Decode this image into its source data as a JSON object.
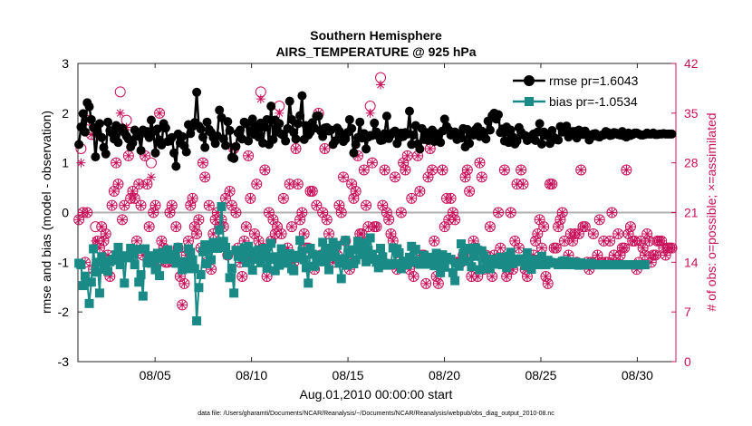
{
  "chart_data": {
    "type": "line",
    "title": "Southern Hemisphere",
    "subtitle": "AIRS_TEMPERATURE @ 925 hPa",
    "xlabel": "Aug.01,2010 00:00:00 start",
    "ylabel": "rmse and bias (model - observation)",
    "ylabel_right": "# of obs: o=possible; ×=assimilated",
    "footnote": "data file: /Users/gharamti/Documents/NCAR/Reanalysis/~/Documents/NCAR/Reanalysis/webpub/obs_diag_output_2010-08.nc",
    "x_range": [
      1,
      32
    ],
    "ylim": [
      -3,
      3
    ],
    "ylim_right": [
      0,
      42
    ],
    "x_ticks": [
      5,
      10,
      15,
      20,
      25,
      30
    ],
    "x_tick_labels": [
      "08/05",
      "08/10",
      "08/15",
      "08/20",
      "08/25",
      "08/30"
    ],
    "y_ticks": [
      -3,
      -2,
      -1,
      0,
      1,
      2,
      3
    ],
    "y_tick_labels": [
      "-3",
      "-2",
      "-1",
      "0",
      "1",
      "2",
      "3"
    ],
    "y_ticks_right": [
      0,
      7,
      14,
      21,
      28,
      35,
      42
    ],
    "y_tick_labels_right": [
      "0",
      "7",
      "14",
      "21",
      "28",
      "35",
      "42"
    ],
    "legend_position": "top-right",
    "colors": {
      "rmse": "#000000",
      "bias": "#1a8a86",
      "obs": "#c8105a",
      "zero_line": "#b0b0b0"
    },
    "series": [
      {
        "name": "rmse pr=1.6043",
        "marker": "circle",
        "values": [
          1.37,
          1.72,
          1.99,
          1.62,
          2.21,
          2.13,
          1.87,
          1.71,
          1.12,
          1.6,
          1.79,
          1.51,
          1.31,
          1.18,
          1.82,
          1.65,
          1.6,
          1.48,
          1.75,
          1.41,
          1.69,
          1.7,
          1.61,
          1.54,
          1.48,
          1.32,
          1.4,
          1.66,
          1.54,
          1.53,
          1.25,
          1.66,
          1.6,
          1.63,
          1.51,
          1.86,
          1.63,
          1.2,
          1.68,
          1.46,
          1.36,
          1.79,
          1.7,
          1.43,
          1.44,
          1.51,
          1.2,
          0.93,
          1.58,
          1.4,
          1.53,
          1.34,
          1.22,
          1.77,
          1.59,
          1.73,
          1.81,
          2.42,
          1.74,
          1.68,
          1.52,
          1.31,
          1.82,
          1.67,
          1.61,
          1.51,
          1.39,
          1.54,
          2.06,
          1.91,
          1.48,
          1.35,
          1.83,
          1.65,
          1.11,
          1.09,
          1.33,
          1.6,
          1.66,
          1.48,
          1.82,
          1.79,
          1.44,
          1.64,
          1.88,
          1.57,
          1.74,
          1.52,
          1.8,
          1.4,
          1.72,
          1.87,
          1.37,
          2.14,
          1.47,
          1.86,
          1.62,
          1.79,
          1.58,
          1.55,
          1.44,
          1.69,
          2.24,
          1.87,
          1.61,
          1.48,
          1.79,
          1.95,
          2.35,
          1.47,
          1.75,
          1.56,
          1.62,
          1.81,
          1.7,
          1.94,
          1.94,
          1.64,
          1.53,
          1.7,
          1.71,
          1.64,
          1.66,
          1.37,
          1.44,
          1.7,
          1.64,
          1.52,
          1.43,
          1.48,
          1.61,
          1.87,
          1.69,
          1.2,
          1.37,
          1.51,
          1.82,
          1.5,
          1.59,
          1.28,
          1.52,
          1.55,
          1.55,
          1.8,
          1.62,
          1.54,
          1.45,
          1.46,
          1.59,
          1.94,
          1.49,
          1.57,
          1.61,
          1.64,
          1.39,
          1.5,
          1.6,
          1.53,
          1.61,
          1.58,
          2.04,
          1.37,
          1.56,
          1.75,
          1.38,
          1.28,
          1.69,
          1.47,
          1.61,
          1.45,
          1.5,
          1.66,
          1.43,
          1.59,
          1.53,
          1.41,
          1.64,
          1.88,
          1.73,
          1.66,
          1.56,
          1.58,
          1.62,
          1.47,
          1.55,
          1.5,
          1.69,
          1.32,
          1.67,
          1.39,
          1.58,
          1.56,
          1.67,
          1.72,
          1.53,
          1.64,
          1.56,
          1.48,
          1.84,
          1.66,
          1.95,
          2.0,
          1.88,
          1.97,
          1.61,
          1.68,
          1.44,
          1.72,
          1.41,
          1.66,
          1.52,
          1.38,
          1.44,
          1.71,
          1.62,
          1.56,
          1.55,
          1.45,
          1.48,
          1.54,
          1.58,
          1.45,
          1.62,
          1.79,
          1.38,
          1.62,
          1.55,
          1.54,
          1.39,
          1.65,
          1.51,
          1.47,
          1.46,
          1.73,
          1.62,
          1.64,
          1.74,
          1.52,
          1.57,
          1.63,
          1.63,
          1.5,
          1.66,
          1.6,
          1.57,
          1.64,
          1.58,
          1.46,
          1.52,
          1.58,
          1.59,
          1.53,
          1.52,
          1.56,
          1.56,
          1.63,
          1.61,
          1.55,
          1.56,
          1.61,
          1.6,
          1.57,
          1.56,
          1.63,
          1.54,
          1.52,
          1.6,
          1.55,
          1.57,
          1.6,
          1.6,
          1.58,
          1.56,
          1.56,
          1.57,
          1.6,
          1.58,
          1.58,
          1.6,
          1.57,
          1.57,
          1.58,
          1.58,
          1.59,
          1.58,
          1.58,
          1.58,
          1.58
        ]
      },
      {
        "name": "bias pr=-1.0534",
        "marker": "square",
        "values": [
          -1.02,
          -1.05,
          -1.47,
          -1.28,
          -1.4,
          -1.83,
          -1.4,
          -0.73,
          -1.2,
          -1.0,
          -1.62,
          -0.89,
          -1.14,
          -0.99,
          -1.18,
          -0.99,
          -0.96,
          -0.94,
          -0.85,
          -0.7,
          -1.05,
          -0.87,
          -1.42,
          -0.88,
          -0.91,
          -0.72,
          -0.82,
          -1.05,
          -0.74,
          -1.4,
          -1.25,
          -1.68,
          -0.73,
          -1.01,
          -0.87,
          -1.02,
          -0.91,
          -1.15,
          -0.82,
          -1.27,
          -0.92,
          -0.8,
          -0.94,
          -0.75,
          -0.94,
          -0.89,
          -0.84,
          -1.02,
          -0.7,
          -0.99,
          -1.15,
          -0.99,
          -1.13,
          -0.73,
          -0.8,
          -0.95,
          -1.13,
          -2.18,
          -1.51,
          -1.25,
          -0.79,
          -0.65,
          -1.03,
          -0.72,
          -0.95,
          -0.6,
          -0.62,
          -0.72,
          -0.35,
          0.12,
          -0.58,
          -0.7,
          -0.85,
          -1.31,
          -1.12,
          -1.62,
          -0.76,
          -0.88,
          -0.78,
          -0.9,
          -0.71,
          -1.01,
          -0.68,
          -0.82,
          -1.16,
          -0.94,
          -0.78,
          -0.75,
          -1.01,
          -0.83,
          -0.72,
          -1.12,
          -0.9,
          -0.62,
          -0.94,
          -1.17,
          -0.89,
          -1.06,
          -0.73,
          -0.84,
          -1.02,
          -0.95,
          -0.83,
          -1.13,
          -1.17,
          -0.91,
          -0.86,
          -0.56,
          -0.78,
          -0.95,
          -1.11,
          -1.42,
          -0.72,
          -0.84,
          -1.08,
          -0.93,
          -0.99,
          -0.86,
          -0.6,
          -0.99,
          -0.72,
          -1.15,
          -0.83,
          -0.6,
          -0.89,
          -0.66,
          -1.02,
          -1.33,
          -0.93,
          -0.56,
          -1.06,
          -0.82,
          -0.75,
          -1.03,
          -0.95,
          -0.58,
          -0.68,
          -0.85,
          -0.61,
          -0.99,
          -0.76,
          -0.51,
          -0.84,
          -0.94,
          -1.0,
          -1.11,
          -0.72,
          -0.89,
          -1.02,
          -1.06,
          -1.03,
          -1.05,
          -0.71,
          -1.03,
          -0.73,
          -0.81,
          -1.13,
          -0.98,
          -0.98,
          -1.05,
          -0.9,
          -0.68,
          -1.0,
          -0.74,
          -0.97,
          -1.04,
          -1.04,
          -0.86,
          -0.93,
          -1.04,
          -0.94,
          -0.9,
          -1.07,
          -0.82,
          -0.98,
          -1.21,
          -0.85,
          -1.1,
          -0.9,
          -0.95,
          -0.94,
          -1.21,
          -1.37,
          -1.02,
          -1.08,
          -0.63,
          -0.83,
          -0.98,
          -0.72,
          -0.74,
          -1.09,
          -0.88,
          -0.71,
          -0.76,
          -1.15,
          -0.77,
          -0.87,
          -1.02,
          -1.13,
          -1.13,
          -0.94,
          -1.04,
          -1.03,
          -1.0,
          -0.9,
          -1.05,
          -0.97,
          -1.11,
          -0.88,
          -0.8,
          -1.03,
          -0.96,
          -0.99,
          -0.94,
          -0.93,
          -0.98,
          -1.07,
          -0.81,
          -0.95,
          -1.14,
          -1.01,
          -0.95,
          -1.05,
          -1.0,
          -0.88,
          -0.99,
          -1.05,
          -0.96,
          -1.0,
          -1.02,
          -1.01,
          -1.02,
          -1.05,
          -1.04,
          -0.98,
          -0.97,
          -1.05,
          -0.99,
          -1.0,
          -1.05,
          -1.0,
          -1.01,
          -1.06,
          -1.01,
          -1.04,
          -1.03,
          -1.05,
          -1.05,
          -1.02,
          -1.05,
          -1.05,
          -1.05,
          -1.05,
          -1.05,
          -1.05,
          -1.05,
          -1.05,
          -1.05,
          -1.05,
          -1.05,
          -1.05,
          -1.05,
          -1.05,
          -1.05,
          -1.05,
          -1.05,
          -1.05,
          -1.05,
          -1.05,
          -1.05,
          -1.05,
          -1.05,
          -1.05,
          -1.05,
          -1.05
        ]
      },
      {
        "name": "obs possible",
        "marker": "open-circle",
        "values": [
          20,
          30,
          21,
          14,
          21,
          34,
          32,
          13,
          19,
          17,
          16,
          19,
          17,
          18,
          15,
          12,
          22,
          24,
          28,
          25,
          38,
          20,
          22,
          34,
          29,
          23,
          24,
          23,
          17,
          25,
          22,
          15,
          29,
          25,
          19,
          28,
          21,
          22,
          14,
          35,
          17,
          16,
          14,
          14,
          21,
          22,
          14,
          19,
          16,
          12,
          8,
          11,
          15,
          17,
          22,
          23,
          19,
          18,
          20,
          16,
          28,
          26,
          14,
          22,
          13,
          18,
          20,
          21,
          19,
          20,
          19,
          23,
          15,
          24,
          22,
          30,
          21,
          16,
          14,
          12,
          17,
          19,
          29,
          23,
          15,
          18,
          25,
          17,
          38,
          16,
          27,
          12,
          21,
          17,
          20,
          18,
          19,
          36,
          18,
          23,
          15,
          16,
          25,
          19,
          14,
          30,
          25,
          20,
          21,
          18,
          16,
          16,
          24,
          24,
          13,
          22,
          35,
          15,
          21,
          30,
          20,
          18,
          15,
          14,
          16,
          15,
          22,
          21,
          26,
          17,
          14,
          13,
          25,
          23,
          24,
          29,
          18,
          18,
          27,
          22,
          19,
          36,
          28,
          19,
          19,
          14,
          40,
          22,
          27,
          21,
          20,
          18,
          17,
          26,
          13,
          14,
          21,
          28,
          27,
          29,
          13,
          23,
          12,
          14,
          29,
          24,
          15,
          15,
          11,
          26,
          30,
          27,
          17,
          12,
          11,
          14,
          27,
          19,
          23,
          20,
          23,
          21,
          20,
          14,
          14,
          14,
          15,
          26,
          27,
          24,
          12,
          17,
          16,
          12,
          28,
          26,
          13,
          15,
          14,
          19,
          12,
          15,
          14,
          21,
          16,
          14,
          27,
          12,
          13,
          21,
          13,
          17,
          25,
          16,
          27,
          25,
          13,
          12,
          14,
          14,
          15,
          17,
          18,
          20,
          16,
          19,
          12,
          11,
          25,
          25,
          16,
          16,
          19,
          20,
          21,
          17,
          14,
          15,
          18,
          17,
          18,
          14,
          18,
          27,
          19,
          19,
          14,
          13,
          14,
          18,
          14,
          15,
          20,
          14,
          17,
          14,
          14,
          17,
          21,
          15,
          14,
          18,
          15,
          16,
          16,
          27,
          18,
          19,
          17,
          17,
          13,
          14,
          17,
          16,
          15,
          18,
          17,
          14,
          15,
          15,
          17,
          17,
          17,
          16,
          15,
          16,
          16,
          16
        ],
        "values_assimilated": [
          20,
          28,
          21,
          14,
          21,
          34,
          32,
          13,
          17,
          17,
          16,
          19,
          17,
          18,
          15,
          12,
          22,
          24,
          28,
          25,
          35,
          20,
          22,
          33,
          29,
          23,
          24,
          23,
          17,
          25,
          22,
          15,
          29,
          25,
          19,
          26,
          21,
          22,
          14,
          35,
          17,
          16,
          14,
          14,
          21,
          22,
          14,
          19,
          16,
          12,
          8,
          11,
          15,
          17,
          22,
          23,
          19,
          18,
          20,
          16,
          28,
          26,
          14,
          22,
          13,
          18,
          20,
          21,
          19,
          20,
          19,
          23,
          15,
          24,
          22,
          30,
          21,
          16,
          14,
          12,
          17,
          19,
          29,
          23,
          15,
          18,
          25,
          17,
          37,
          16,
          27,
          12,
          21,
          17,
          20,
          18,
          19,
          35,
          18,
          23,
          15,
          16,
          25,
          19,
          14,
          30,
          25,
          20,
          21,
          18,
          16,
          16,
          24,
          24,
          13,
          22,
          35,
          15,
          21,
          30,
          20,
          18,
          15,
          14,
          16,
          15,
          22,
          21,
          26,
          17,
          14,
          13,
          25,
          23,
          24,
          29,
          18,
          18,
          27,
          22,
          19,
          35,
          28,
          19,
          19,
          14,
          39,
          22,
          27,
          21,
          20,
          18,
          17,
          26,
          13,
          14,
          21,
          28,
          27,
          29,
          13,
          23,
          12,
          14,
          29,
          24,
          15,
          15,
          11,
          26,
          30,
          27,
          17,
          12,
          11,
          14,
          27,
          19,
          23,
          20,
          23,
          21,
          20,
          14,
          14,
          14,
          15,
          26,
          27,
          24,
          12,
          17,
          16,
          12,
          28,
          26,
          13,
          15,
          14,
          19,
          12,
          15,
          14,
          21,
          16,
          14,
          27,
          12,
          13,
          21,
          13,
          17,
          25,
          16,
          27,
          25,
          13,
          12,
          14,
          14,
          15,
          17,
          18,
          20,
          16,
          19,
          12,
          11,
          25,
          25,
          16,
          16,
          19,
          20,
          21,
          17,
          14,
          15,
          18,
          17,
          18,
          14,
          18,
          27,
          19,
          19,
          14,
          13,
          14,
          18,
          14,
          15,
          20,
          14,
          17,
          14,
          14,
          17,
          21,
          15,
          14,
          18,
          15,
          16,
          16,
          27,
          18,
          19,
          17,
          17,
          13,
          14,
          17,
          16,
          15,
          18,
          17,
          14,
          15,
          15,
          17,
          17,
          17,
          16,
          15,
          16,
          16,
          16
        ]
      }
    ]
  }
}
